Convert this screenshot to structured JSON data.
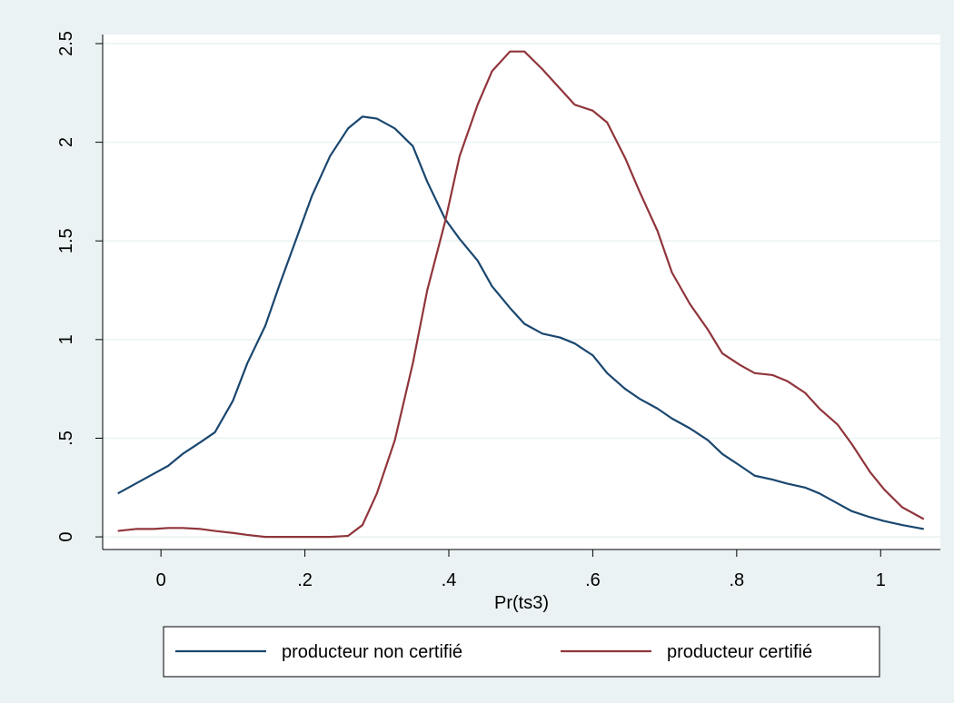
{
  "chart_data": {
    "type": "line",
    "x_label": "Pr(ts3)",
    "x": [
      -0.06,
      -0.035,
      -0.01,
      0.01,
      0.03,
      0.055,
      0.075,
      0.1,
      0.12,
      0.145,
      0.165,
      0.19,
      0.21,
      0.235,
      0.26,
      0.28,
      0.3,
      0.325,
      0.35,
      0.37,
      0.395,
      0.415,
      0.44,
      0.46,
      0.485,
      0.505,
      0.53,
      0.555,
      0.575,
      0.6,
      0.62,
      0.645,
      0.665,
      0.69,
      0.71,
      0.735,
      0.76,
      0.78,
      0.805,
      0.825,
      0.85,
      0.87,
      0.895,
      0.915,
      0.94,
      0.96,
      0.985,
      1.005,
      1.03,
      1.06
    ],
    "series": [
      {
        "name": "producteur non certifié",
        "color": "#1a476f",
        "values": [
          0.22,
          0.27,
          0.32,
          0.36,
          0.42,
          0.48,
          0.53,
          0.69,
          0.88,
          1.07,
          1.28,
          1.53,
          1.73,
          1.93,
          2.07,
          2.13,
          2.12,
          2.07,
          1.98,
          1.8,
          1.61,
          1.51,
          1.4,
          1.27,
          1.16,
          1.08,
          1.03,
          1.01,
          0.98,
          0.92,
          0.83,
          0.75,
          0.7,
          0.65,
          0.6,
          0.55,
          0.49,
          0.42,
          0.36,
          0.31,
          0.29,
          0.27,
          0.25,
          0.22,
          0.17,
          0.13,
          0.1,
          0.08,
          0.06,
          0.04
        ]
      },
      {
        "name": "producteur certifié",
        "color": "#90353b",
        "values": [
          0.03,
          0.04,
          0.04,
          0.045,
          0.045,
          0.04,
          0.03,
          0.02,
          0.01,
          0,
          0,
          0,
          0,
          0,
          0.005,
          0.06,
          0.22,
          0.49,
          0.88,
          1.25,
          1.6,
          1.93,
          2.19,
          2.36,
          2.46,
          2.46,
          2.37,
          2.27,
          2.19,
          2.16,
          2.1,
          1.92,
          1.75,
          1.55,
          1.34,
          1.18,
          1.05,
          0.93,
          0.87,
          0.83,
          0.82,
          0.79,
          0.73,
          0.65,
          0.57,
          0.47,
          0.33,
          0.24,
          0.15,
          0.09
        ]
      }
    ],
    "xlim": [
      -0.081,
      1.083
    ],
    "ylim": [
      -0.064,
      2.546
    ],
    "xticks": [
      0,
      {
        "value": 0.2,
        "label": ".2"
      },
      {
        "value": 0.4,
        "label": ".4"
      },
      {
        "value": 0.6,
        "label": ".6"
      },
      {
        "value": 0.8,
        "label": ".8"
      },
      1
    ],
    "yticks": [
      0,
      {
        "value": 0.5,
        "label": ".5"
      },
      1,
      1.5,
      2,
      2.5
    ],
    "grid": true,
    "legend": "bottom"
  }
}
